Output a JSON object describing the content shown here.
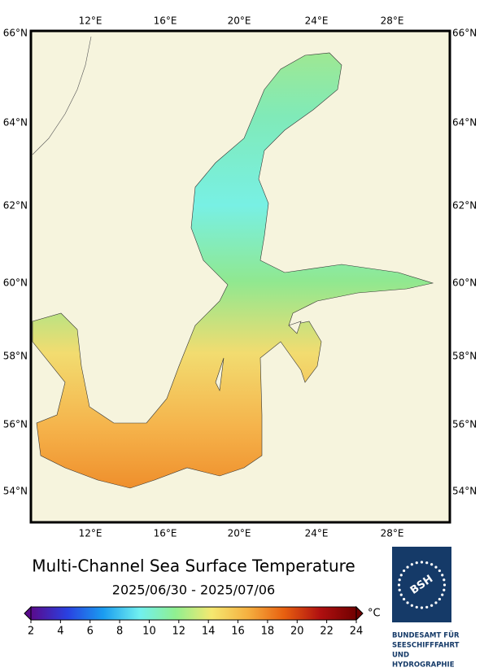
{
  "map": {
    "lon_labels": [
      "12°E",
      "16°E",
      "20°E",
      "24°E",
      "28°E"
    ],
    "lat_labels": [
      "66°N",
      "64°N",
      "62°N",
      "60°N",
      "58°N",
      "56°N",
      "54°N"
    ]
  },
  "title": "Multi-Channel Sea Surface Temperature",
  "date_range": "2025/06/30 - 2025/07/06",
  "colorbar": {
    "range": [
      2,
      24
    ],
    "ticks": [
      2,
      4,
      6,
      8,
      10,
      12,
      14,
      16,
      18,
      20,
      22,
      24
    ],
    "unit": "°C",
    "colors": [
      "#5a0a8c",
      "#2a40e0",
      "#1a9cf0",
      "#70f0f0",
      "#90f090",
      "#f5e870",
      "#f5b040",
      "#e86010",
      "#b01010",
      "#700000"
    ]
  },
  "logo": {
    "mark": "BSH",
    "lines": [
      "BUNDESAMT FÜR",
      "SEESCHIFFFAHRT",
      "UND",
      "HYDROGRAPHIE"
    ]
  }
}
